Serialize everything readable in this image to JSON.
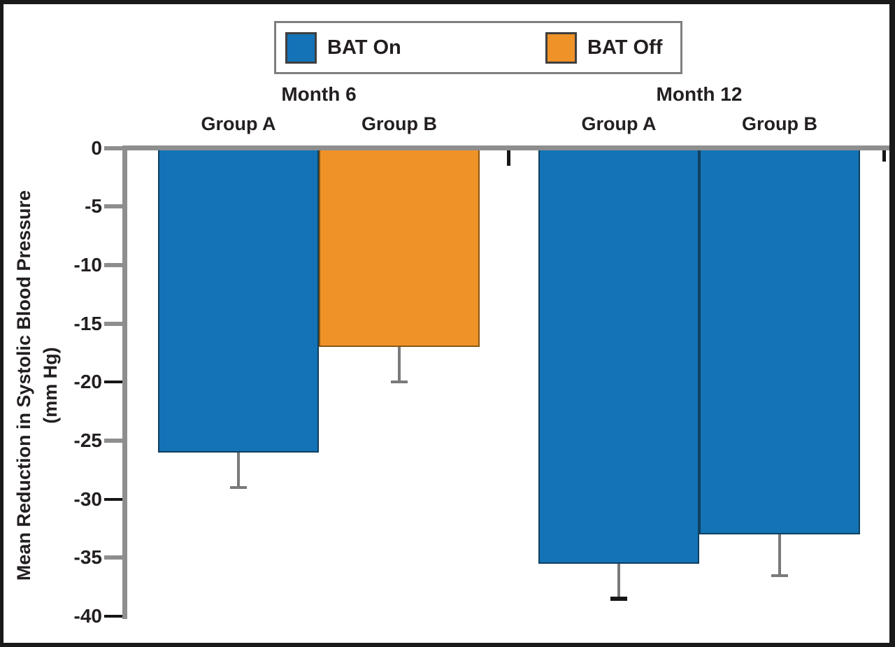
{
  "legend": {
    "entries": [
      {
        "label": "BAT On",
        "color": "#1373b6",
        "border_color": "#10405f"
      },
      {
        "label": "BAT Off",
        "color": "#ef9329",
        "border_color": "#8a5511"
      }
    ]
  },
  "y_axis": {
    "label_line1": "Mean Reduction in Systolic Blood Pressure",
    "label_line2": "(mm Hg)",
    "tick_labels": [
      "0",
      "-5",
      "-10",
      "-15",
      "-20",
      "-25",
      "-30",
      "-35",
      "-40"
    ]
  },
  "colors": {
    "axis_gray": "#8e8e8e",
    "error_bar_gray": "#7a7a7a",
    "dark_tick": "#161616",
    "text": "#231f20",
    "frame": "#1a1a1a",
    "legend_border": "#7f7f7f"
  },
  "chart_data": {
    "type": "bar",
    "title": "",
    "ylabel": "Mean Reduction in Systolic Blood Pressure (mm Hg)",
    "xlabel": "",
    "ylim": [
      0,
      -40
    ],
    "yticks": [
      0,
      -5,
      -10,
      -15,
      -20,
      -25,
      -30,
      -35,
      -40
    ],
    "grid": false,
    "legend_position": "top-center",
    "legend_entries": [
      "BAT On",
      "BAT Off"
    ],
    "series_colors": {
      "BAT On": "#1373b6",
      "BAT Off": "#ef9329"
    },
    "series_border_colors": {
      "BAT On": "#10405f",
      "BAT Off": "#8a5511"
    },
    "units": "mm Hg",
    "groups": [
      {
        "label": "Month 6",
        "bars": [
          {
            "label": "Group A",
            "series": "BAT On",
            "value": -26,
            "error": 3,
            "error_cap_value": -29
          },
          {
            "label": "Group B",
            "series": "BAT Off",
            "value": -17,
            "error": 3,
            "error_cap_value": -20
          }
        ]
      },
      {
        "label": "Month 12",
        "bars": [
          {
            "label": "Group A",
            "series": "BAT On",
            "value": -35.5,
            "error": 3,
            "error_cap_value": -38.5,
            "cap_strong": true
          },
          {
            "label": "Group B",
            "series": "BAT On",
            "value": -33,
            "error": 3.5,
            "error_cap_value": -36.5
          }
        ]
      }
    ]
  }
}
